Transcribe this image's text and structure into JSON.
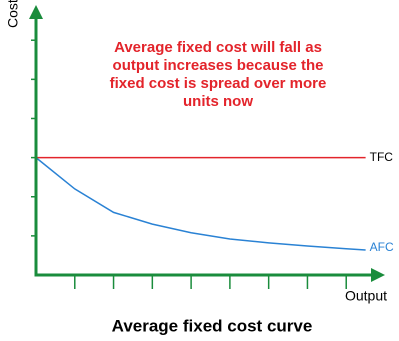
{
  "chart_data": {
    "type": "line",
    "title": "Average fixed cost curve",
    "annotation": [
      "Average fixed cost will fall as",
      "output increases because the",
      "fixed cost is spread over more",
      "units now"
    ],
    "x_label": "Output",
    "y_label": "Costs",
    "x": [
      0,
      1,
      2,
      3,
      4,
      5,
      6,
      7,
      8,
      8.5
    ],
    "series": [
      {
        "name": "TFC",
        "color": "#e3242b",
        "values": [
          3,
          3,
          3,
          3,
          3,
          3,
          3,
          3,
          3,
          3
        ]
      },
      {
        "name": "AFC",
        "color": "#2a82d4",
        "values": [
          3,
          2.2,
          1.6,
          1.3,
          1.08,
          0.92,
          0.82,
          0.74,
          0.67,
          0.64
        ]
      }
    ],
    "xlim": [
      0,
      9
    ],
    "ylim": [
      0,
      6.9
    ],
    "xticks": [
      1,
      2,
      3,
      4,
      5,
      6,
      7,
      8
    ],
    "yticks": [
      1,
      2,
      3,
      4,
      5,
      6
    ],
    "axis_color": "#1a8c3c"
  }
}
